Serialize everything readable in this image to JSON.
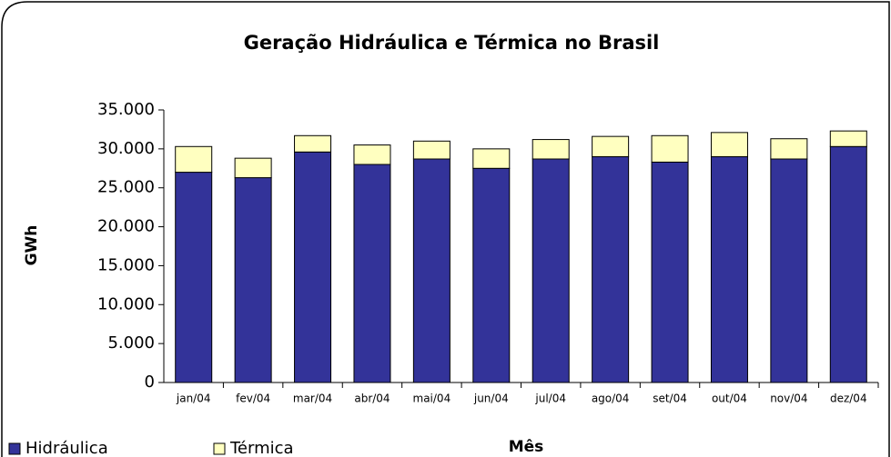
{
  "chart_data": {
    "type": "stacked_bar",
    "title": "Geração Hidráulica e Térmica no Brasil",
    "x_label": "Mês",
    "y_label": "GWh",
    "categories": [
      "jan/04",
      "fev/04",
      "mar/04",
      "abr/04",
      "mai/04",
      "jun/04",
      "jul/04",
      "ago/04",
      "set/04",
      "out/04",
      "nov/04",
      "dez/04"
    ],
    "series": [
      {
        "name": "Hidráulica",
        "color": "#333399",
        "values": [
          27000,
          26300,
          29600,
          28000,
          28700,
          27500,
          28700,
          29000,
          28300,
          29000,
          28700,
          30300
        ]
      },
      {
        "name": "Térmica",
        "color": "#ffffc0",
        "values": [
          3300,
          2500,
          2100,
          2500,
          2300,
          2500,
          2500,
          2600,
          3400,
          3100,
          2600,
          2000
        ]
      }
    ],
    "ylim": [
      0,
      35000
    ],
    "yticks": [
      0,
      {
        "value": 5000,
        "label": "5.000"
      },
      {
        "value": 10000,
        "label": "10.000"
      },
      {
        "value": 15000,
        "label": "15.000"
      },
      {
        "value": 20000,
        "label": "20.000"
      },
      {
        "value": 25000,
        "label": "25.000"
      },
      {
        "value": 30000,
        "label": "30.000"
      },
      {
        "value": 35000,
        "label": "35.000"
      }
    ],
    "legend": "bottom-left"
  }
}
